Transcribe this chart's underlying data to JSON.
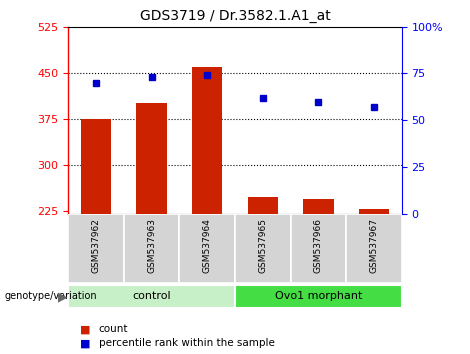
{
  "title": "GDS3719 / Dr.3582.1.A1_at",
  "samples": [
    "GSM537962",
    "GSM537963",
    "GSM537964",
    "GSM537965",
    "GSM537966",
    "GSM537967"
  ],
  "counts": [
    375,
    400,
    460,
    248,
    245,
    228
  ],
  "percentiles": [
    70,
    73,
    74,
    62,
    60,
    57
  ],
  "ylim_left": [
    220,
    525
  ],
  "ylim_right": [
    0,
    100
  ],
  "yticks_left": [
    225,
    300,
    375,
    450,
    525
  ],
  "yticks_right": [
    0,
    25,
    50,
    75,
    100
  ],
  "ytick_labels_right": [
    "0",
    "25",
    "50",
    "75",
    "100%"
  ],
  "hgrid_lines": [
    300,
    375,
    450
  ],
  "groups": [
    {
      "label": "control",
      "indices": [
        0,
        1,
        2
      ],
      "color": "#c8f0c8"
    },
    {
      "label": "Ovo1 morphant",
      "indices": [
        3,
        4,
        5
      ],
      "color": "#44dd44"
    }
  ],
  "bar_color": "#cc2200",
  "dot_color": "#0000cc",
  "bar_width": 0.55,
  "legend_count_label": "count",
  "legend_pct_label": "percentile rank within the sample",
  "genotype_label": "genotype/variation"
}
